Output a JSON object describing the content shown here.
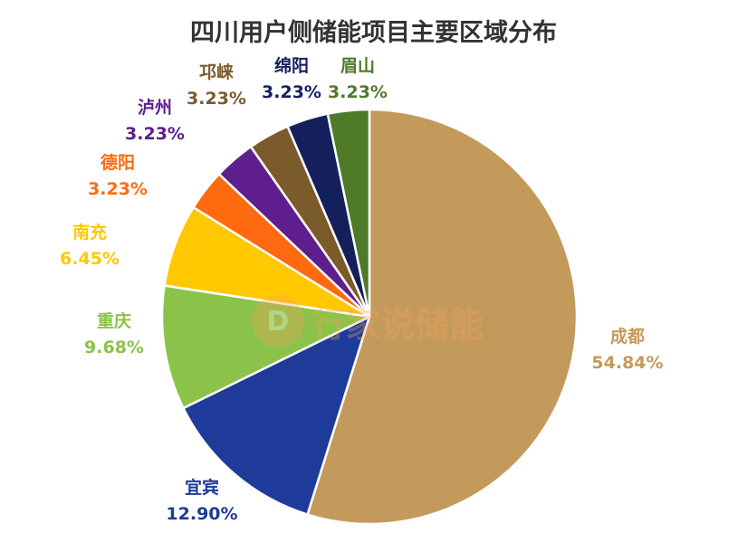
{
  "chart_data": {
    "type": "pie",
    "title": "四川用户侧储能项目主要区域分布",
    "start": "top",
    "direction": "clockwise",
    "slices": [
      {
        "label": "成都",
        "value": 54.84,
        "value_text": "54.84%",
        "color": "#C49A5C",
        "label_color": "#C49A5C"
      },
      {
        "label": "宜宾",
        "value": 12.9,
        "value_text": "12.90%",
        "color": "#1F3B9A",
        "label_color": "#1F3B9A"
      },
      {
        "label": "重庆",
        "value": 9.68,
        "value_text": "9.68%",
        "color": "#8BC34A",
        "label_color": "#8BC34A"
      },
      {
        "label": "南充",
        "value": 6.45,
        "value_text": "6.45%",
        "color": "#FFC800",
        "label_color": "#FFC800"
      },
      {
        "label": "德阳",
        "value": 3.23,
        "value_text": "3.23%",
        "color": "#FF6A10",
        "label_color": "#FF6A10"
      },
      {
        "label": "泸州",
        "value": 3.23,
        "value_text": "3.23%",
        "color": "#5E1E8E",
        "label_color": "#5E1E8E"
      },
      {
        "label": "邛崃",
        "value": 3.23,
        "value_text": "3.23%",
        "color": "#7B5A2B",
        "label_color": "#7B5A2B"
      },
      {
        "label": "绵阳",
        "value": 3.23,
        "value_text": "3.23%",
        "color": "#14205C",
        "label_color": "#14205C"
      },
      {
        "label": "眉山",
        "value": 3.23,
        "value_text": "3.23%",
        "color": "#4F7A28",
        "label_color": "#4F7A28"
      }
    ]
  },
  "watermark": {
    "logo_glyph": "D",
    "text": "行家说储能"
  }
}
